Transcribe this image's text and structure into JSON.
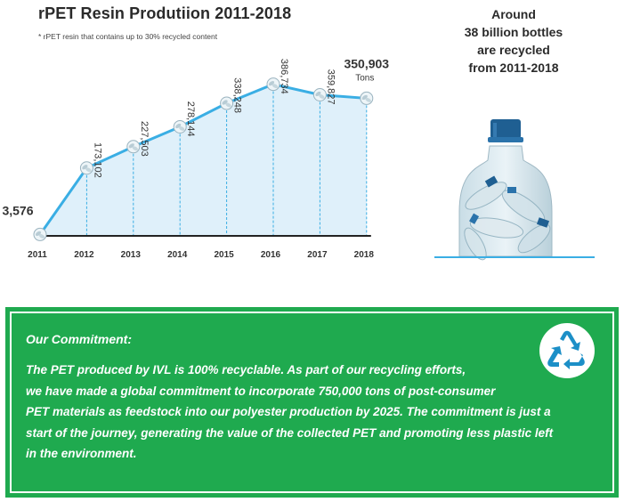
{
  "chart_data": {
    "type": "area",
    "title": "rPET Resin Produtiion 2011-2018",
    "footnote": "* rPET resin that contains up to 30% recycled content",
    "categories": [
      "2011",
      "2012",
      "2013",
      "2014",
      "2015",
      "2016",
      "2017",
      "2018"
    ],
    "series": [
      {
        "values": [
          3576,
          173102,
          227503,
          278144,
          338248,
          386734,
          359827,
          350903
        ],
        "labels": [
          "3,576",
          "173,102",
          "227,503",
          "278,144",
          "338,248",
          "386,734",
          "359,827",
          "350,903"
        ]
      }
    ],
    "last_value_unit": "Tons",
    "ylim": [
      0,
      420000
    ],
    "grid": false,
    "colors": {
      "line": "#3aaee4",
      "fill": "#dff0fa",
      "axis": "#222222",
      "dash": "#3aaee4"
    },
    "marker_icon": "recycle-bottle-icon"
  },
  "bottle_caption": {
    "line1": "Around",
    "line2": "38 billion bottles",
    "line3": "are recycled",
    "line4": "from 2011-2018"
  },
  "bottle_icon": "recycled-bottles-in-bottle-icon",
  "commitment": {
    "heading": "Our Commitment:",
    "lines": [
      "The PET produced by IVL is 100% recyclable. As part of our recycling efforts,",
      "we have made a global commitment to incorporate 750,000 tons of post-consumer",
      "PET materials as feedstock into our polyester production by 2025. The commitment is just a",
      "start of the journey, generating the value of the collected PET and promoting less plastic left",
      "in the environment."
    ],
    "icon": "recycle-icon",
    "colors": {
      "background": "#1faa4f",
      "text": "#ffffff",
      "icon": "#1c8fc7"
    }
  }
}
